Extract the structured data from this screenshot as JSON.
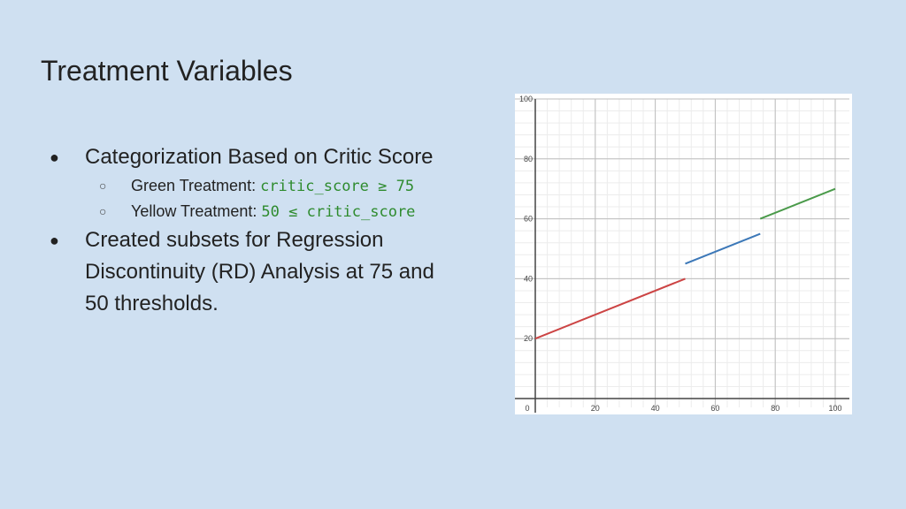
{
  "slide": {
    "title": "Treatment Variables",
    "bullet1": "Categorization Based on Critic Score",
    "sub1_label": "Green Treatment: ",
    "sub1_code": "critic_score ≥ 75",
    "sub2_label": "Yellow Treatment: ",
    "sub2_code": "50 ≤ critic_score",
    "bullet2": "Created subsets for Regression Discontinuity (RD) Analysis at 75 and 50 thresholds."
  },
  "colors": {
    "background": "#cfe0f1",
    "code_text": "#2e8b2e"
  },
  "chart_data": {
    "type": "line",
    "xlim": [
      0,
      100
    ],
    "ylim": [
      0,
      100
    ],
    "x_ticks": [
      0,
      20,
      40,
      60,
      80,
      100
    ],
    "y_ticks": [
      20,
      40,
      60,
      80,
      100
    ],
    "grid": true,
    "series": [
      {
        "color": "#cc4444",
        "x": [
          0,
          50
        ],
        "y": [
          20,
          40
        ]
      },
      {
        "color": "#3c78b8",
        "x": [
          50,
          75
        ],
        "y": [
          45,
          55
        ]
      },
      {
        "color": "#4a9a4a",
        "x": [
          75,
          100
        ],
        "y": [
          60,
          70
        ]
      }
    ]
  }
}
